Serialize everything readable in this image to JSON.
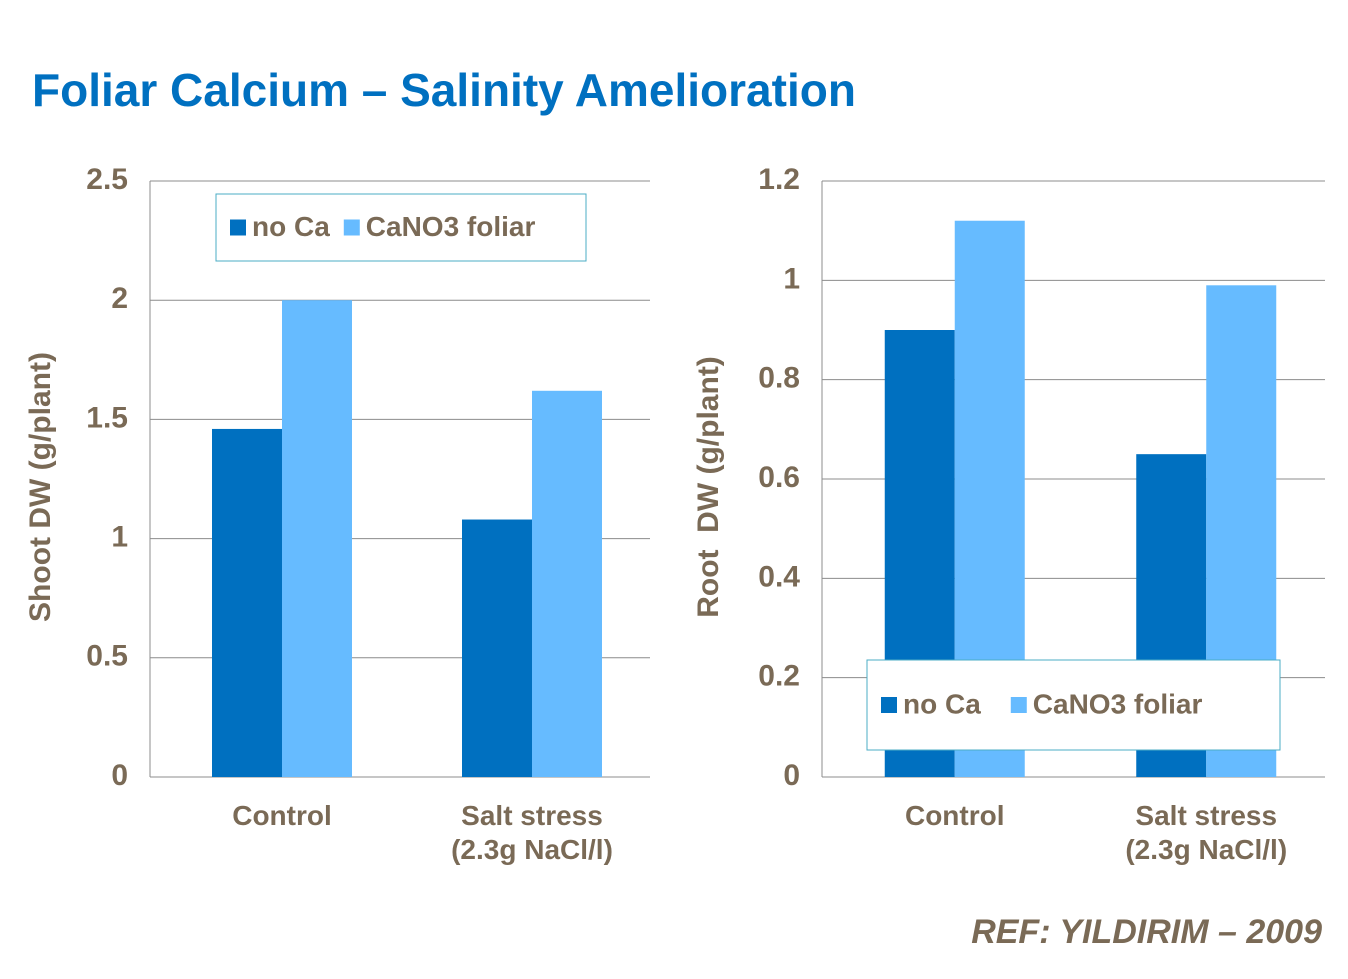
{
  "title": "Foliar Calcium – Salinity Amelioration",
  "reference": "REF: YILDIRIM – 2009",
  "chart_data": [
    {
      "type": "bar",
      "y_label": "Shoot DW (g/plant)",
      "categories": [
        "Control",
        "Salt stress\n(2.3g NaCl/l)"
      ],
      "series": [
        {
          "name": "no Ca",
          "color": "#0070C0",
          "values": [
            1.46,
            1.08
          ]
        },
        {
          "name": "CaNO3 foliar",
          "color": "#66BBFF",
          "values": [
            2.0,
            1.62
          ]
        }
      ],
      "ylim": [
        0,
        2.5
      ],
      "yticks": [
        0,
        0.5,
        1,
        1.5,
        2,
        2.5
      ],
      "grid": true,
      "legend": "top"
    },
    {
      "type": "bar",
      "y_label": "Root  DW (g/plant)",
      "categories": [
        "Control",
        "Salt stress\n(2.3g NaCl/l)"
      ],
      "series": [
        {
          "name": "no Ca",
          "color": "#0070C0",
          "values": [
            0.9,
            0.65
          ]
        },
        {
          "name": "CaNO3 foliar",
          "color": "#66BBFF",
          "values": [
            1.12,
            0.99
          ]
        }
      ],
      "ylim": [
        0,
        1.2
      ],
      "yticks": [
        0,
        0.2,
        0.4,
        0.6,
        0.8,
        1,
        1.2
      ],
      "grid": true,
      "legend": "bottom"
    }
  ]
}
